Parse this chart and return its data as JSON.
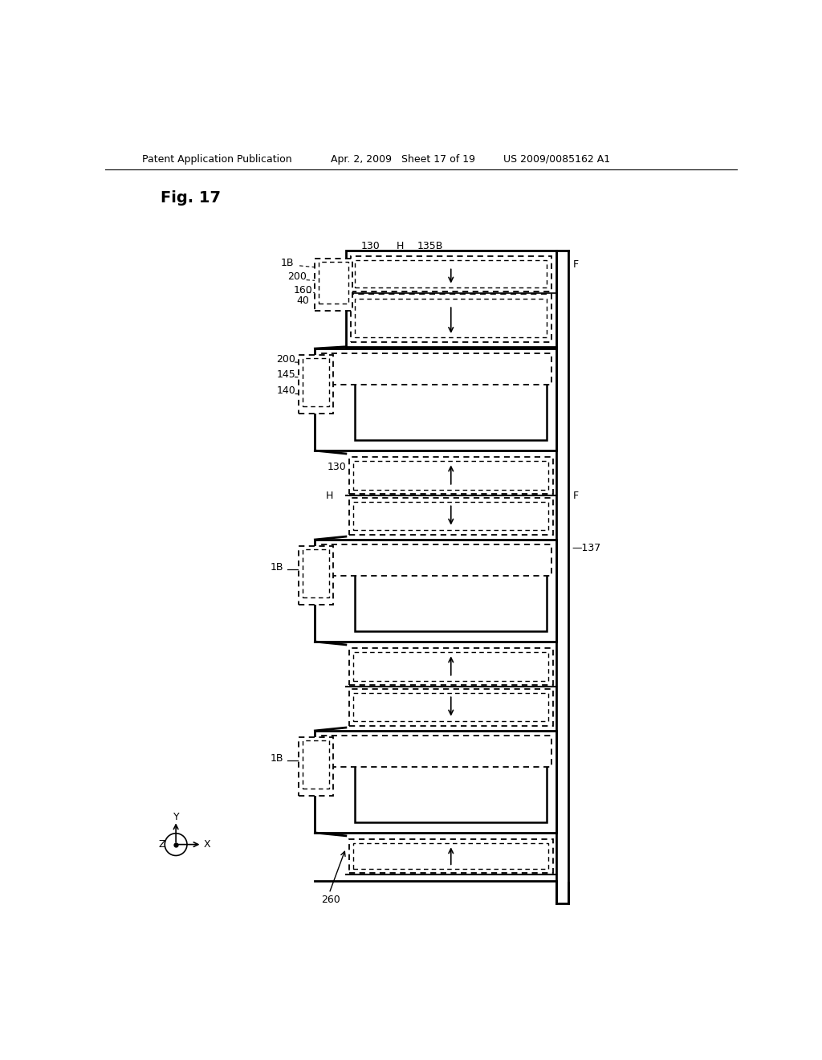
{
  "title": "Fig. 17",
  "header_left": "Patent Application Publication",
  "header_center": "Apr. 2, 2009   Sheet 17 of 19",
  "header_right": "US 2009/0085162 A1",
  "bg_color": "#ffffff",
  "fig_width": 10.24,
  "fig_height": 13.2
}
